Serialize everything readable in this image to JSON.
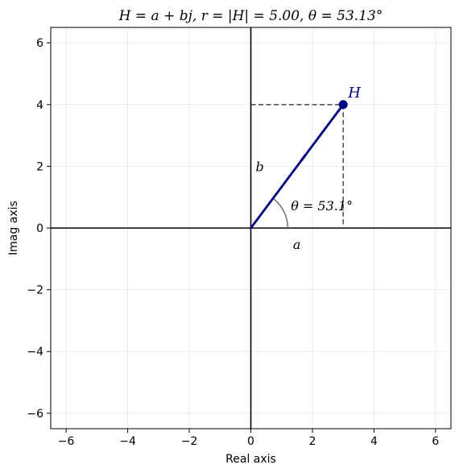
{
  "chart_data": {
    "type": "scatter",
    "title": "H = a + bj,    r = |H| = 5.00,    θ = 53.13°",
    "xlabel": "Real axis",
    "ylabel": "Imag axis",
    "xlim": [
      -6.5,
      6.5
    ],
    "ylim": [
      -6.5,
      6.5
    ],
    "x_ticks": [
      -6,
      -4,
      -2,
      0,
      2,
      4,
      6
    ],
    "y_ticks": [
      -6,
      -4,
      -2,
      0,
      2,
      4,
      6
    ],
    "x_tick_labels": [
      "−6",
      "−4",
      "−2",
      "0",
      "2",
      "4",
      "6"
    ],
    "y_tick_labels": [
      "−6",
      "−4",
      "−2",
      "0",
      "2",
      "4",
      "6"
    ],
    "grid": true,
    "point": {
      "label": "H",
      "x": 3,
      "y": 4
    },
    "real_part": {
      "label": "a",
      "value": 3
    },
    "imag_part": {
      "label": "b",
      "value": 4
    },
    "angle": {
      "label": "θ = 53.1°",
      "degrees": 53.13
    },
    "colors": {
      "vector": "#000080",
      "projection": "#555555",
      "arc": "#777777",
      "axes": "#000000",
      "grid": "#e6e6e6"
    }
  }
}
